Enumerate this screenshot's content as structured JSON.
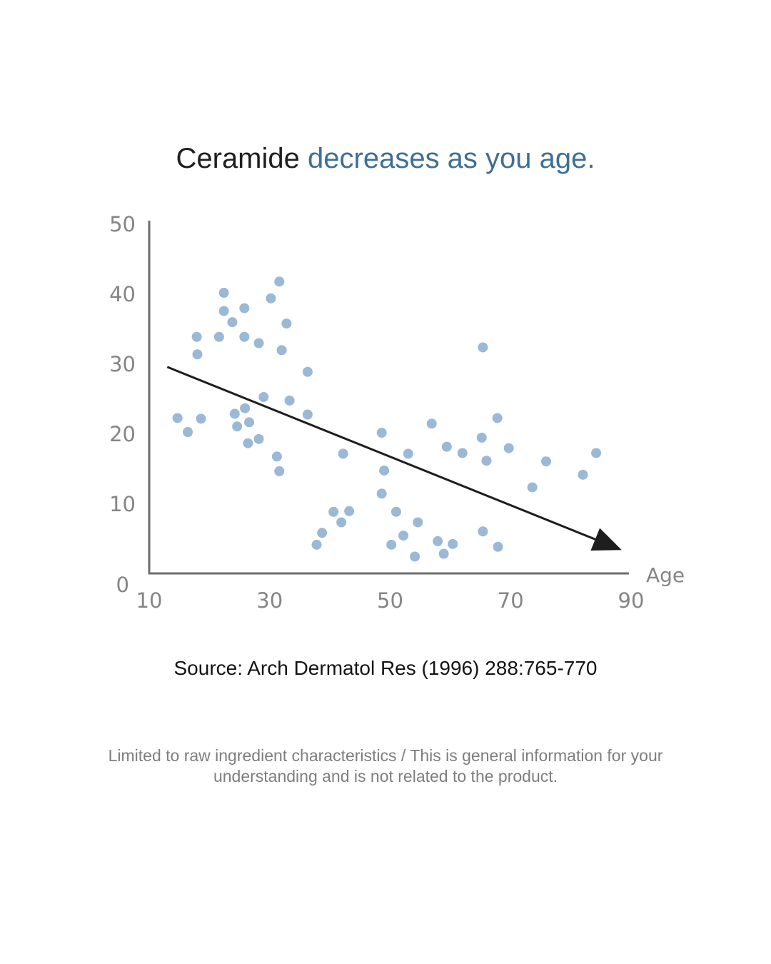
{
  "headline": {
    "lead": "Ceramide",
    "accent": "decreases as you age."
  },
  "colors": {
    "accent": "#3e6f96",
    "point": "#9bb8d6",
    "axis": "#6e6e6e",
    "trend": "#1e1e1e"
  },
  "chart_data": {
    "type": "scatter",
    "title": "",
    "xlabel": "Age",
    "ylabel": "",
    "xlim": [
      10,
      90
    ],
    "ylim": [
      0,
      50
    ],
    "x_ticks": [
      "10",
      "30",
      "50",
      "70",
      "90"
    ],
    "y_ticks": [
      "0",
      "10",
      "20",
      "30",
      "40",
      "50"
    ],
    "grid": false,
    "legend": "none",
    "trend_arrow": {
      "from": [
        13,
        29.5
      ],
      "to": [
        88,
        3.5
      ]
    },
    "points": [
      [
        14.7,
        22.2
      ],
      [
        16.4,
        20.2
      ],
      [
        17.9,
        33.8
      ],
      [
        18.0,
        31.3
      ],
      [
        18.6,
        22.1
      ],
      [
        21.6,
        33.8
      ],
      [
        22.4,
        40.1
      ],
      [
        22.4,
        37.5
      ],
      [
        23.8,
        35.9
      ],
      [
        24.2,
        22.8
      ],
      [
        24.6,
        21.0
      ],
      [
        25.8,
        37.9
      ],
      [
        25.8,
        33.8
      ],
      [
        25.9,
        23.6
      ],
      [
        26.4,
        18.6
      ],
      [
        26.6,
        21.6
      ],
      [
        28.2,
        32.9
      ],
      [
        28.2,
        19.2
      ],
      [
        29.0,
        25.2
      ],
      [
        30.2,
        39.3
      ],
      [
        31.2,
        16.7
      ],
      [
        31.6,
        14.6
      ],
      [
        31.6,
        41.7
      ],
      [
        32.0,
        31.9
      ],
      [
        32.8,
        35.7
      ],
      [
        33.3,
        24.7
      ],
      [
        36.3,
        28.8
      ],
      [
        36.3,
        22.7
      ],
      [
        37.8,
        4.1
      ],
      [
        38.7,
        5.8
      ],
      [
        40.6,
        8.8
      ],
      [
        41.9,
        7.3
      ],
      [
        42.2,
        17.1
      ],
      [
        43.2,
        8.9
      ],
      [
        48.6,
        20.1
      ],
      [
        48.6,
        11.4
      ],
      [
        49.0,
        14.7
      ],
      [
        50.2,
        4.1
      ],
      [
        51.0,
        8.8
      ],
      [
        52.2,
        5.4
      ],
      [
        53.0,
        17.1
      ],
      [
        54.1,
        2.4
      ],
      [
        54.6,
        7.3
      ],
      [
        56.9,
        21.4
      ],
      [
        57.9,
        4.6
      ],
      [
        58.9,
        2.8
      ],
      [
        59.4,
        18.1
      ],
      [
        60.4,
        4.2
      ],
      [
        62.0,
        17.2
      ],
      [
        65.2,
        19.4
      ],
      [
        65.4,
        6.0
      ],
      [
        65.4,
        32.3
      ],
      [
        66.0,
        16.1
      ],
      [
        67.8,
        22.2
      ],
      [
        67.9,
        3.8
      ],
      [
        69.7,
        17.9
      ],
      [
        73.6,
        12.3
      ],
      [
        75.9,
        16.0
      ],
      [
        82.0,
        14.1
      ],
      [
        84.2,
        17.2
      ]
    ]
  },
  "source": "Source: Arch Dermatol Res (1996) 288:765-770",
  "disclaimer": "Limited to raw ingredient characteristics / This is general information for your understanding and is not related to the product."
}
